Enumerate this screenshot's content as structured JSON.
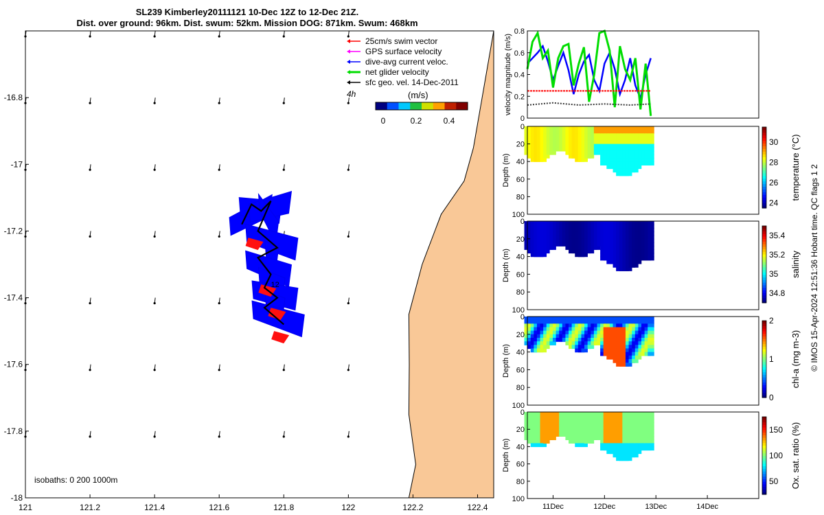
{
  "title_line1": "SL239 Kimberley20111121 10-Dec 12Z to 12-Dec 21Z.",
  "title_line2": "Dist. over ground: 96km. Dist. swum: 52km. Mission DOG: 871km. Swum: 468km",
  "legend": {
    "entries": [
      {
        "label": "25cm/s swim vector",
        "color": "#ff0000"
      },
      {
        "label": "GPS surface velocity",
        "color": "#ff00ff"
      },
      {
        "label": "dive-avg current veloc.",
        "color": "#0000ff"
      },
      {
        "label": "net glider velocity",
        "color": "#00dd00"
      },
      {
        "label": "sfc geo. vel. 14-Dec-2011",
        "color": "#000000"
      }
    ],
    "hours_label": "4h"
  },
  "colorbar": {
    "unit": "(m/s)",
    "ticks": [
      "0",
      "0.2",
      "0.4"
    ],
    "colors": [
      "#000080",
      "#0050ff",
      "#00c8ff",
      "#20c040",
      "#d0e000",
      "#ffa000",
      "#c02000",
      "#800000"
    ]
  },
  "isobaths_label": "isobaths: 0   200  1000m",
  "footer": "© IMOS 15-Apr-2024 12:51:36 Hobart time. QC flags 1  2",
  "track_markers": [
    "12"
  ],
  "chart_data": [
    {
      "type": "map",
      "xlim": [
        121,
        122.45
      ],
      "ylim": [
        -18,
        -16.6
      ],
      "xticks": [
        "121",
        "121.2",
        "121.4",
        "121.6",
        "121.8",
        "122",
        "122.2",
        "122.4"
      ],
      "yticks": [
        "-16.8",
        "-17",
        "-17.2",
        "-17.4",
        "-17.6",
        "-17.8",
        "-18"
      ],
      "glider_track": [
        [
          121.67,
          -17.18
        ],
        [
          121.7,
          -17.12
        ],
        [
          121.73,
          -17.14
        ],
        [
          121.76,
          -17.11
        ],
        [
          121.72,
          -17.2
        ],
        [
          121.78,
          -17.25
        ],
        [
          121.72,
          -17.28
        ],
        [
          121.76,
          -17.33
        ],
        [
          121.74,
          -17.37
        ],
        [
          121.78,
          -17.4
        ],
        [
          121.74,
          -17.43
        ],
        [
          121.8,
          -17.48
        ]
      ],
      "coast_lon_by_lat": [
        [
          -16.6,
          122.45
        ],
        [
          -16.95,
          122.4
        ],
        [
          -17.05,
          122.35
        ],
        [
          -17.15,
          122.3
        ],
        [
          -17.3,
          122.22
        ],
        [
          -17.45,
          122.2
        ],
        [
          -17.6,
          122.18
        ],
        [
          -17.75,
          122.2
        ],
        [
          -17.9,
          122.2
        ],
        [
          -18,
          122.2
        ]
      ]
    },
    {
      "type": "line",
      "xlabel": "",
      "ylabel": "velocity magnitude (m/s)",
      "x_ticks": [
        "11Dec",
        "12Dec",
        "13Dec",
        "14Dec"
      ],
      "xlim": [
        10.5,
        15.0
      ],
      "ylim": [
        0,
        0.8
      ],
      "yticks": [
        "0",
        "0.2",
        "0.4",
        "0.6",
        "0.8"
      ],
      "series": [
        {
          "name": "dive-avg current veloc.",
          "color": "#0000ff",
          "x": [
            10.5,
            10.6,
            10.7,
            10.8,
            10.9,
            11.0,
            11.1,
            11.2,
            11.3,
            11.4,
            11.5,
            11.6,
            11.7,
            11.8,
            11.9,
            12.0,
            12.1,
            12.2,
            12.3,
            12.4,
            12.5,
            12.6,
            12.7,
            12.8,
            12.9
          ],
          "values": [
            0.5,
            0.55,
            0.6,
            0.66,
            0.52,
            0.35,
            0.48,
            0.6,
            0.44,
            0.22,
            0.4,
            0.52,
            0.58,
            0.35,
            0.25,
            0.5,
            0.6,
            0.45,
            0.22,
            0.35,
            0.55,
            0.3,
            0.18,
            0.4,
            0.55
          ]
        },
        {
          "name": "net glider velocity",
          "color": "#00dd00",
          "x": [
            10.5,
            10.6,
            10.7,
            10.8,
            10.9,
            11.0,
            11.1,
            11.2,
            11.3,
            11.4,
            11.5,
            11.6,
            11.7,
            11.8,
            11.9,
            12.0,
            12.1,
            12.2,
            12.3,
            12.4,
            12.5,
            12.6,
            12.7,
            12.8,
            12.9
          ],
          "values": [
            0.45,
            0.7,
            0.78,
            0.55,
            0.62,
            0.28,
            0.55,
            0.66,
            0.68,
            0.3,
            0.5,
            0.65,
            0.15,
            0.4,
            0.78,
            0.8,
            0.62,
            0.1,
            0.66,
            0.45,
            0.35,
            0.55,
            0.08,
            0.5,
            0.02
          ]
        },
        {
          "name": "25cm/s swim vector",
          "color": "#ff0000",
          "x": [
            10.5,
            12.9
          ],
          "values": [
            0.25,
            0.25
          ]
        },
        {
          "name": "sfc geo. vel.",
          "color": "#333333",
          "x": [
            10.5,
            11.0,
            11.5,
            12.0,
            12.5,
            12.9
          ],
          "values": [
            0.12,
            0.14,
            0.12,
            0.13,
            0.12,
            0.13
          ]
        }
      ]
    },
    {
      "type": "heatmap",
      "variable": "temperature",
      "ylabel": "Depth (m)",
      "cbar_label": "temperature (°C)",
      "cbar_ticks": [
        "24",
        "26",
        "28",
        "30"
      ],
      "cbar_range": [
        23.5,
        31.5
      ],
      "ylim": [
        0,
        100
      ],
      "yticks": [
        "0",
        "20",
        "40",
        "60",
        "80",
        "100"
      ]
    },
    {
      "type": "heatmap",
      "variable": "salinity",
      "ylabel": "Depth (m)",
      "cbar_label": "salinity",
      "cbar_ticks": [
        "34.8",
        "35",
        "35.2",
        "35.4"
      ],
      "cbar_range": [
        34.7,
        35.5
      ],
      "ylim": [
        0,
        100
      ],
      "yticks": [
        "0",
        "20",
        "40",
        "60",
        "80",
        "100"
      ]
    },
    {
      "type": "heatmap",
      "variable": "chl-a",
      "ylabel": "Depth (m)",
      "cbar_label": "chl-a (mg m-3)",
      "cbar_ticks": [
        "0",
        "1",
        "2"
      ],
      "cbar_range": [
        0,
        2
      ],
      "ylim": [
        0,
        100
      ],
      "yticks": [
        "0",
        "20",
        "40",
        "60",
        "80",
        "100"
      ]
    },
    {
      "type": "heatmap",
      "variable": "oxygen",
      "ylabel": "Depth (m)",
      "cbar_label": "Ox. sat. ratio (%)",
      "cbar_ticks": [
        "50",
        "100",
        "150"
      ],
      "cbar_range": [
        25,
        175
      ],
      "ylim": [
        0,
        100
      ],
      "yticks": [
        "0",
        "20",
        "40",
        "60",
        "80",
        "100"
      ]
    }
  ]
}
